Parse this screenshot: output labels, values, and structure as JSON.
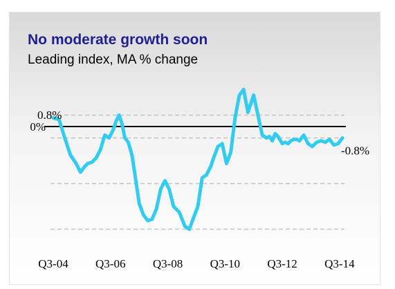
{
  "chart_data": {
    "type": "line",
    "title": "No moderate growth soon",
    "subtitle": "Leading index, MA % change",
    "xlabel": "",
    "ylabel": "",
    "x_tick_labels": [
      "Q3-04",
      "Q3-06",
      "Q3-08",
      "Q3-10",
      "Q3-12",
      "Q3-14"
    ],
    "x_tick_positions": [
      0,
      2,
      4,
      6,
      8,
      10
    ],
    "ylim": [
      -4.0,
      0.8
    ],
    "y_tick_labels": [
      {
        "label": "0.8%",
        "value": 0.8
      },
      {
        "label": "0%",
        "value": 0.0
      }
    ],
    "gridlines": [
      0.4,
      -0.4,
      -2.0,
      -3.6
    ],
    "zero_line": true,
    "series": [
      {
        "color": "#33ccee",
        "x": [
          0.0,
          0.2,
          0.4,
          0.6,
          0.8,
          0.95,
          1.1,
          1.2,
          1.35,
          1.5,
          1.65,
          1.8,
          1.95,
          2.1,
          2.2,
          2.3,
          2.4,
          2.5,
          2.62,
          2.75,
          2.9,
          3.0,
          3.15,
          3.3,
          3.45,
          3.6,
          3.75,
          3.9,
          4.05,
          4.2,
          4.4,
          4.6,
          4.75,
          4.9,
          5.05,
          5.2,
          5.35,
          5.5,
          5.6,
          5.75,
          5.9,
          6.05,
          6.2,
          6.35,
          6.5,
          6.65,
          6.8,
          7.0,
          7.15,
          7.3,
          7.45,
          7.55,
          7.65,
          7.75,
          7.85,
          8.0,
          8.1,
          8.2,
          8.3,
          8.4,
          8.5,
          8.6,
          8.75,
          8.9,
          9.05,
          9.2,
          9.35,
          9.5,
          9.65,
          9.8,
          9.95,
          10.1
        ],
        "y": [
          0.3,
          0.25,
          -0.4,
          -1.0,
          -1.3,
          -1.6,
          -1.4,
          -1.3,
          -1.25,
          -1.1,
          -0.8,
          -0.3,
          -0.4,
          -0.1,
          0.2,
          0.4,
          0.1,
          -0.4,
          -0.55,
          -1.0,
          -2.0,
          -2.7,
          -3.1,
          -3.3,
          -3.25,
          -2.9,
          -2.2,
          -1.9,
          -2.2,
          -2.8,
          -3.0,
          -3.5,
          -3.6,
          -3.2,
          -2.8,
          -1.8,
          -1.7,
          -1.4,
          -1.1,
          -0.7,
          -0.6,
          -1.3,
          -0.9,
          0.3,
          1.1,
          1.3,
          0.5,
          1.1,
          0.4,
          -0.3,
          -0.4,
          -0.35,
          -0.5,
          -0.25,
          -0.35,
          -0.6,
          -0.55,
          -0.6,
          -0.5,
          -0.45,
          -0.45,
          -0.5,
          -0.3,
          -0.6,
          -0.7,
          -0.55,
          -0.5,
          -0.55,
          -0.45,
          -0.65,
          -0.6,
          -0.4
        ]
      }
    ],
    "annotations": [
      {
        "text": "-0.8%"
      }
    ]
  }
}
